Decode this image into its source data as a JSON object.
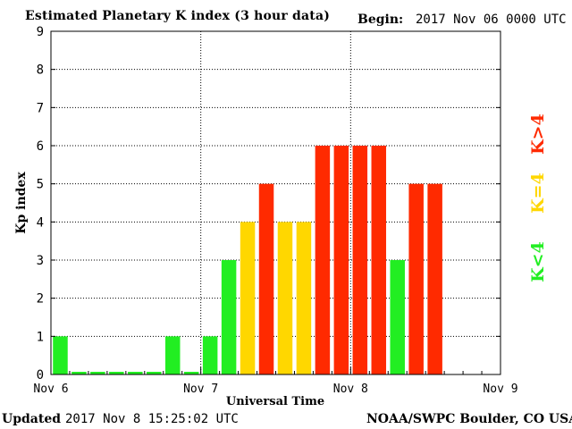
{
  "header": {
    "title": "Estimated Planetary K index (3 hour data)",
    "begin_label": "Begin:",
    "begin_value": "2017 Nov 06 0000 UTC"
  },
  "footer": {
    "updated_label": "Updated",
    "updated_value": "2017 Nov  8 15:25:02 UTC",
    "credit": "NOAA/SWPC Boulder, CO USA"
  },
  "chart_data": {
    "type": "bar",
    "xlabel": "Universal Time",
    "ylabel": "Kp index",
    "ylim": [
      0,
      9
    ],
    "yticks": [
      "0",
      "1",
      "2",
      "3",
      "4",
      "5",
      "6",
      "7",
      "8",
      "9"
    ],
    "xticks": [
      "Nov 6",
      "Nov 7",
      "Nov 8",
      "Nov 9"
    ],
    "grid": true,
    "slots_total": 24,
    "values": [
      1,
      0,
      0,
      0,
      0,
      0,
      1,
      0,
      1,
      3,
      4,
      5,
      4,
      4,
      6,
      6,
      6,
      6,
      3,
      5,
      5
    ],
    "colors": {
      "low": "#22ee22",
      "mid": "#ffd700",
      "high": "#ff2a00"
    },
    "legend": [
      {
        "label": "K<4",
        "color": "#22ee22"
      },
      {
        "label": "K=4",
        "color": "#ffd700"
      },
      {
        "label": "K>4",
        "color": "#ff2a00"
      }
    ]
  }
}
